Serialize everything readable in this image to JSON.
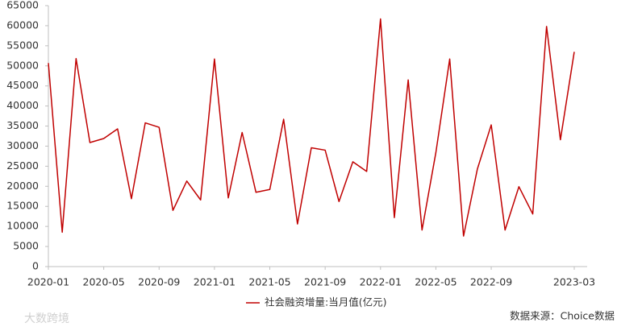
{
  "chart_data": {
    "type": "line",
    "categories": [
      "2020-01",
      null,
      null,
      null,
      "2020-05",
      null,
      null,
      null,
      "2020-09",
      null,
      null,
      null,
      "2021-01",
      null,
      null,
      null,
      "2021-05",
      null,
      null,
      null,
      "2021-09",
      null,
      null,
      null,
      "2022-01",
      null,
      null,
      null,
      "2022-05",
      null,
      null,
      null,
      "2022-09",
      null,
      null,
      null,
      null,
      null,
      "2023-03"
    ],
    "series": [
      {
        "name": "社会融资增量:当月值(亿元)",
        "color": "#c00000",
        "values": [
          50700,
          8554,
          51800,
          30900,
          31900,
          34300,
          16900,
          35800,
          34700,
          14000,
          21300,
          16600,
          51700,
          17100,
          33400,
          18500,
          19200,
          36700,
          10600,
          29600,
          29000,
          16200,
          26100,
          23700,
          61700,
          12200,
          46500,
          9100,
          28400,
          51700,
          7600,
          24300,
          35300,
          9100,
          19900,
          13100,
          59800,
          31600,
          53500
        ]
      }
    ],
    "ylim": [
      0,
      65000
    ],
    "yticks": [
      0,
      5000,
      10000,
      15000,
      20000,
      25000,
      30000,
      35000,
      40000,
      45000,
      50000,
      55000,
      60000,
      65000
    ],
    "grid": false,
    "legend": "bottom",
    "source": "数据来源：Choice数据",
    "watermark": "大数跨境"
  }
}
